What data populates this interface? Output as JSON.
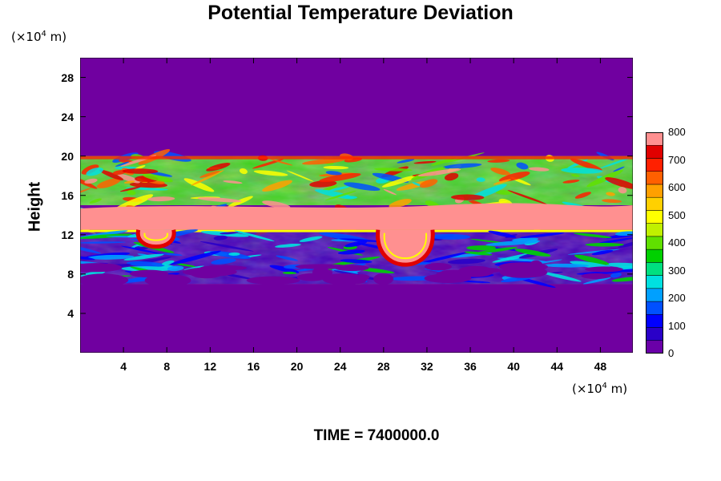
{
  "chart_data": {
    "type": "heatmap",
    "title": "Potential Temperature Deviation",
    "ylabel": "Height",
    "xunit": "(×10⁴ m)",
    "yunit": "(×10⁴ m)",
    "xlim": [
      0,
      51
    ],
    "ylim": [
      0,
      30
    ],
    "xticks": [
      "4",
      "8",
      "12",
      "16",
      "20",
      "24",
      "28",
      "32",
      "36",
      "40",
      "44",
      "48"
    ],
    "yticks": [
      "4",
      "8",
      "12",
      "16",
      "20",
      "24",
      "28"
    ],
    "colorbar": {
      "range": [
        0,
        800
      ],
      "labels": [
        "800",
        "700",
        "600",
        "500",
        "400",
        "300",
        "200",
        "100",
        "0"
      ]
    },
    "footer": "TIME = 7400000.0",
    "structure": {
      "background_value": 0,
      "active_layer_height": [
        7,
        20
      ],
      "peak_band_height": [
        12.5,
        15
      ],
      "lower_band_height": [
        7,
        12.5
      ],
      "plumes_x": [
        7,
        30
      ]
    }
  }
}
